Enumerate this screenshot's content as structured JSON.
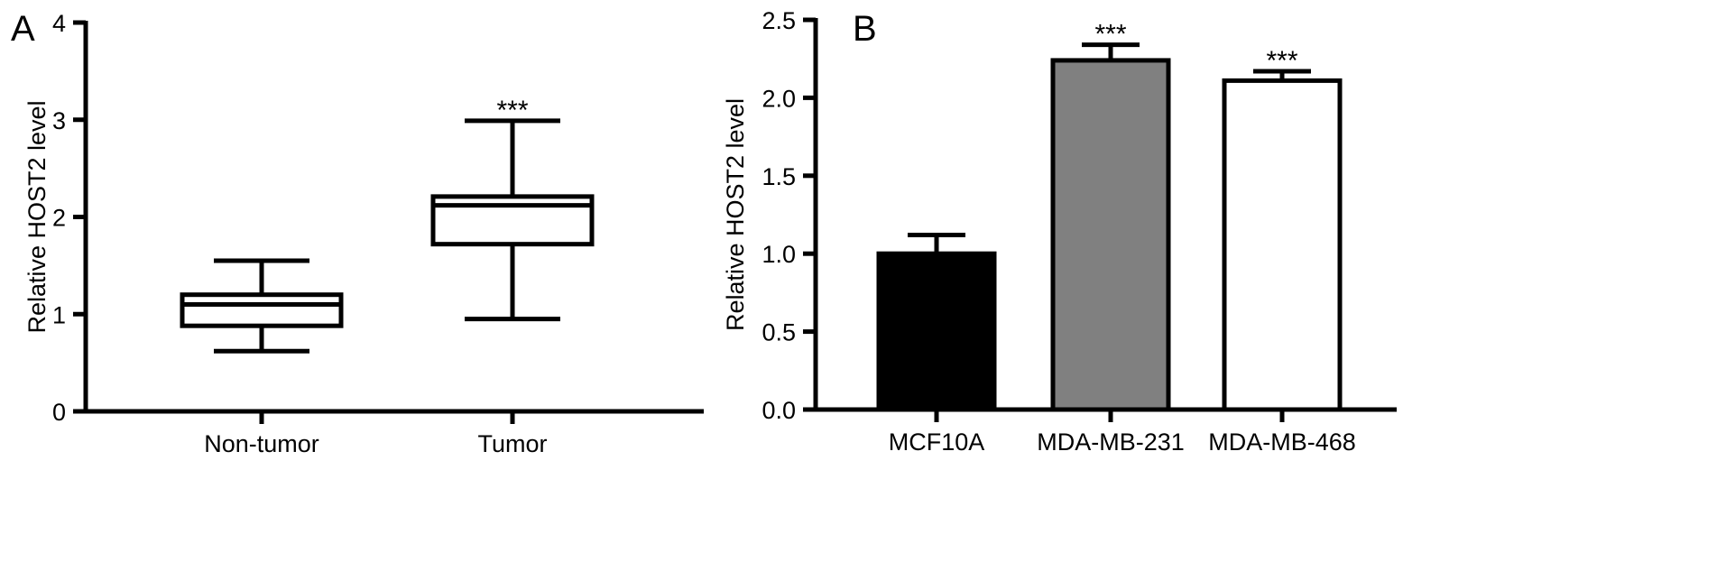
{
  "chart_data": [
    {
      "panel": "A",
      "type": "box",
      "title": "",
      "xlabel": "",
      "ylabel": "Relative HOST2 level",
      "ylim": [
        0,
        4
      ],
      "yticks": [
        "0",
        "1",
        "2",
        "3",
        "4"
      ],
      "categories": [
        "Non-tumor",
        "Tumor"
      ],
      "boxes": [
        {
          "label": "Non-tumor",
          "min": 0.62,
          "q1": 0.88,
          "median": 1.1,
          "q3": 1.2,
          "max": 1.55,
          "significance": ""
        },
        {
          "label": "Tumor",
          "min": 0.95,
          "q1": 1.72,
          "median": 2.12,
          "q3": 2.21,
          "max": 2.99,
          "significance": "***"
        }
      ],
      "grid": false
    },
    {
      "panel": "B",
      "type": "bar",
      "title": "",
      "xlabel": "",
      "ylabel": "Relative HOST2 level",
      "ylim": [
        0,
        2.5
      ],
      "yticks": [
        "0.0",
        "0.5",
        "1.0",
        "1.5",
        "2.0",
        "2.5"
      ],
      "categories": [
        "MCF10A",
        "MDA-MB-231",
        "MDA-MB-468"
      ],
      "values": [
        1.0,
        2.24,
        2.11
      ],
      "errors": [
        0.12,
        0.1,
        0.06
      ],
      "significance": [
        "",
        "***",
        "***"
      ],
      "colors": [
        "#000000",
        "#808080",
        "#ffffff"
      ],
      "grid": false
    }
  ]
}
